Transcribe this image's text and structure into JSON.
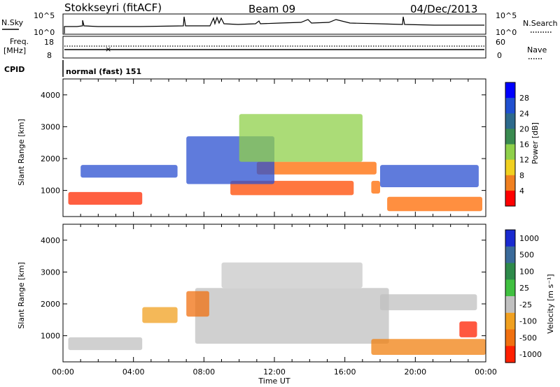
{
  "header": {
    "station": "Stokkseyri (fitACF)",
    "beam": "Beam 09",
    "date": "04/Dec/2013"
  },
  "side_labels": {
    "nsky": "N.Sky",
    "nsky_range_top": "10^5",
    "nsky_range_bottom": "10^0",
    "nsearch": "N.Search",
    "nsearch_range_top": "10^5",
    "nsearch_range_bottom": "10^0",
    "freq_line1": "Freq.",
    "freq_line2": "[MHz]",
    "freq_top": "18",
    "freq_bottom": "8",
    "nave": "Nave",
    "nave_top": "60",
    "nave_bottom": "0",
    "cpid": "CPID",
    "cpid_value": "normal (fast) 151"
  },
  "colors": {
    "frame": "#000000",
    "background": "#ffffff",
    "ground_scatter": "#c0c0c0"
  },
  "chart_data": [
    {
      "type": "heatmap",
      "name": "power-panel",
      "ylabel": "Slant Range [km]",
      "ylim": [
        180,
        4500
      ],
      "yticks": [
        1000,
        2000,
        3000,
        4000
      ],
      "xlim_hours": [
        0,
        24
      ],
      "colorbar": {
        "label": "Power [dB]",
        "ticks": [
          "4",
          "8",
          "12",
          "16",
          "20",
          "24",
          "28"
        ],
        "colors": [
          "#0000ff",
          "#2050d0",
          "#2d6a8c",
          "#3a8a50",
          "#8fd04a",
          "#f0d020",
          "#f08020",
          "#ff0000"
        ]
      },
      "regions": [
        {
          "t0": 0.3,
          "t1": 4.5,
          "r0": 550,
          "r1": 950,
          "color": "#ff2a00"
        },
        {
          "t0": 9.5,
          "t1": 16.5,
          "r0": 850,
          "r1": 1300,
          "color": "#ff4a00"
        },
        {
          "t0": 11.0,
          "t1": 17.8,
          "r0": 1500,
          "r1": 1900,
          "color": "#ff6a00"
        },
        {
          "t0": 17.5,
          "t1": 18.0,
          "r0": 900,
          "r1": 1300,
          "color": "#ff6a00"
        },
        {
          "t0": 18.4,
          "t1": 23.8,
          "r0": 350,
          "r1": 800,
          "color": "#ff6a00"
        },
        {
          "t0": 7.0,
          "t1": 12.0,
          "r0": 1200,
          "r1": 2700,
          "color": "#2a4fd0"
        },
        {
          "t0": 10.0,
          "t1": 17.0,
          "r0": 1900,
          "r1": 3400,
          "color": "#8fd04a"
        },
        {
          "t0": 18.0,
          "t1": 23.6,
          "r0": 1100,
          "r1": 1800,
          "color": "#2a4fd0"
        },
        {
          "t0": 1.0,
          "t1": 6.5,
          "r0": 1400,
          "r1": 1800,
          "color": "#2a4fd0"
        }
      ]
    },
    {
      "type": "heatmap",
      "name": "velocity-panel",
      "ylabel": "Slant Range [km]",
      "xlabel": "Time UT",
      "ylim": [
        180,
        4500
      ],
      "yticks": [
        1000,
        2000,
        3000,
        4000
      ],
      "xticks": [
        "00:00",
        "04:00",
        "08:00",
        "12:00",
        "16:00",
        "20:00",
        "00:00"
      ],
      "xlim_hours": [
        0,
        24
      ],
      "colorbar": {
        "label": "Velocity [m s⁻¹]",
        "ticks": [
          "1000",
          "500",
          "100",
          "25",
          "-25",
          "-100",
          "-500",
          "-1000"
        ],
        "colors": [
          "#1a2ad0",
          "#3a6a9a",
          "#2e8a4a",
          "#40c040",
          "#c0c0c0",
          "#f0a020",
          "#f07010",
          "#ff2000"
        ]
      },
      "regions": [
        {
          "t0": 0.3,
          "t1": 4.5,
          "r0": 550,
          "r1": 950,
          "color": "#c0c0c0"
        },
        {
          "t0": 7.5,
          "t1": 18.5,
          "r0": 750,
          "r1": 2500,
          "color": "#c0c0c0"
        },
        {
          "t0": 9.0,
          "t1": 17.0,
          "r0": 2500,
          "r1": 3300,
          "color": "#c8c8c8"
        },
        {
          "t0": 18.0,
          "t1": 23.5,
          "r0": 1800,
          "r1": 2300,
          "color": "#c0c0c0"
        },
        {
          "t0": 17.5,
          "t1": 24.0,
          "r0": 400,
          "r1": 900,
          "color": "#f08010"
        },
        {
          "t0": 22.5,
          "t1": 23.5,
          "r0": 950,
          "r1": 1450,
          "color": "#ff2000"
        },
        {
          "t0": 7.0,
          "t1": 8.3,
          "r0": 1600,
          "r1": 2400,
          "color": "#f07010"
        },
        {
          "t0": 4.5,
          "t1": 6.5,
          "r0": 1400,
          "r1": 1900,
          "color": "#f0a020"
        }
      ]
    }
  ]
}
